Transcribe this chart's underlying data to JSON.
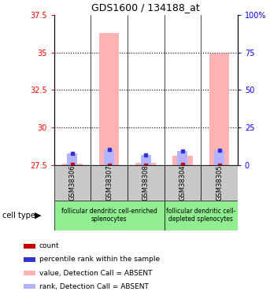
{
  "title": "GDS1600 / 134188_at",
  "samples": [
    "GSM38306",
    "GSM38307",
    "GSM38308",
    "GSM38304",
    "GSM38305"
  ],
  "ylim_left": [
    27.5,
    37.5
  ],
  "ylim_right": [
    0,
    100
  ],
  "yticks_left": [
    27.5,
    30,
    32.5,
    35,
    37.5
  ],
  "yticks_right": [
    0,
    25,
    50,
    75,
    100
  ],
  "value_bars": [
    27.6,
    36.3,
    27.65,
    28.15,
    34.9
  ],
  "rank_bars": [
    28.3,
    28.55,
    28.2,
    28.45,
    28.5
  ],
  "red_dot_vals": [
    27.53,
    27.51,
    27.52,
    27.54,
    27.52
  ],
  "blue_dot_vals": [
    28.3,
    28.55,
    28.2,
    28.45,
    28.5
  ],
  "value_bar_color": "#ffb3b3",
  "rank_bar_color": "#b3b3ff",
  "red_dot_color": "#cc0000",
  "blue_dot_color": "#3333cc",
  "group1_label": "follicular dendritic cell-enriched\nsplenocytes",
  "group2_label": "follicular dendritic cell-\ndepleted splenocytes",
  "group_color": "#90ee90",
  "sample_bg_color": "#c8c8c8",
  "cell_type_label": "cell type",
  "legend_items": [
    {
      "color": "#cc0000",
      "label": "count"
    },
    {
      "color": "#3333cc",
      "label": "percentile rank within the sample"
    },
    {
      "color": "#ffb3b3",
      "label": "value, Detection Call = ABSENT"
    },
    {
      "color": "#b3b3ff",
      "label": "rank, Detection Call = ABSENT"
    }
  ],
  "bar_width": 0.55,
  "rank_bar_width": 0.28,
  "baseline": 27.5
}
